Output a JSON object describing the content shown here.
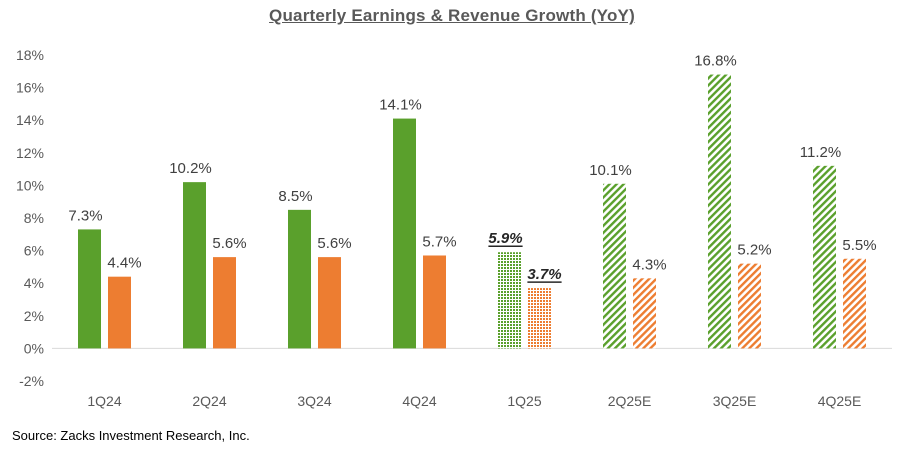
{
  "chart_data": {
    "type": "bar",
    "title": "Quarterly Earnings & Revenue Growth (YoY)",
    "categories": [
      "1Q24",
      "2Q24",
      "3Q24",
      "4Q24",
      "1Q25",
      "2Q25E",
      "3Q25E",
      "4Q25E"
    ],
    "series": [
      {
        "color": "#5aa02c",
        "values": [
          7.3,
          10.2,
          8.5,
          14.1,
          5.9,
          10.1,
          16.8,
          11.2
        ],
        "labels": [
          "7.3%",
          "10.2%",
          "8.5%",
          "14.1%",
          "5.9%",
          "10.1%",
          "16.8%",
          "11.2%"
        ],
        "fill": [
          "solid",
          "solid",
          "solid",
          "solid",
          "dotted",
          "hatched",
          "hatched",
          "hatched"
        ]
      },
      {
        "color": "#ed7d31",
        "values": [
          4.4,
          5.6,
          5.6,
          5.7,
          3.7,
          4.3,
          5.2,
          5.5
        ],
        "labels": [
          "4.4%",
          "5.6%",
          "5.6%",
          "5.7%",
          "3.7%",
          "4.3%",
          "5.2%",
          "5.5%"
        ],
        "fill": [
          "solid",
          "solid",
          "solid",
          "solid",
          "dotted",
          "hatched",
          "hatched",
          "hatched"
        ]
      }
    ],
    "emphasized_category": "1Q25",
    "ylim": [
      -2,
      18
    ],
    "yticks": [
      "-2%",
      "0%",
      "2%",
      "4%",
      "6%",
      "8%",
      "10%",
      "12%",
      "14%",
      "16%",
      "18%"
    ],
    "xlabel": "",
    "ylabel": "",
    "grid": false,
    "legend": "none"
  },
  "source": "Source: Zacks Investment Research, Inc."
}
